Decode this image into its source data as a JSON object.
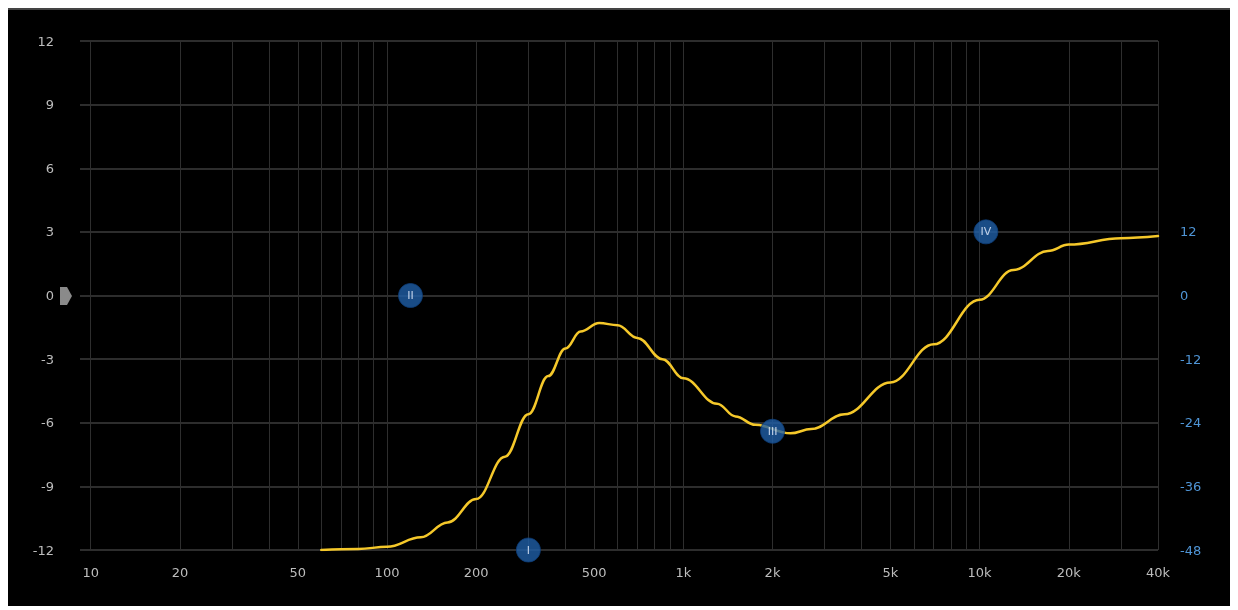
{
  "chart_data": {
    "type": "line",
    "xlim": [
      9.2,
      40000
    ],
    "xticks": [
      10,
      {
        "value": 20,
        "label": "20"
      },
      {
        "value": 30,
        "label": null
      },
      {
        "value": 40,
        "label": null
      },
      50,
      {
        "value": 60,
        "label": null
      },
      {
        "value": 70,
        "label": null
      },
      {
        "value": 80,
        "label": null
      },
      {
        "value": 90,
        "label": null
      },
      100,
      200,
      {
        "value": 300,
        "label": null
      },
      {
        "value": 400,
        "label": null
      },
      500,
      {
        "value": 600,
        "label": null
      },
      {
        "value": 700,
        "label": null
      },
      {
        "value": 800,
        "label": null
      },
      {
        "value": 900,
        "label": null
      },
      {
        "value": 1000,
        "label": "1k"
      },
      {
        "value": 2000,
        "label": "2k"
      },
      {
        "value": 3000,
        "label": null
      },
      {
        "value": 4000,
        "label": null
      },
      {
        "value": 5000,
        "label": "5k"
      },
      {
        "value": 6000,
        "label": null
      },
      {
        "value": 7000,
        "label": null
      },
      {
        "value": 8000,
        "label": null
      },
      {
        "value": 9000,
        "label": null
      },
      {
        "value": 10000,
        "label": "10k"
      },
      {
        "value": 20000,
        "label": "20k"
      },
      {
        "value": 30000,
        "label": null
      },
      {
        "value": 40000,
        "label": "40k"
      }
    ],
    "ylim": [
      -12,
      12
    ],
    "yticks": [
      -12,
      -9,
      -6,
      -3,
      0,
      3,
      6,
      9,
      12
    ],
    "y2lim": [
      -48,
      48
    ],
    "y2ticks": [
      -48,
      -36,
      -24,
      -12,
      0,
      12
    ],
    "log": "x",
    "grid": true,
    "series": [
      {
        "color": "#f5c82a",
        "marker": "none",
        "x": [
          60,
          80,
          100,
          130,
          160,
          200,
          250,
          300,
          350,
          400,
          450,
          520,
          600,
          700,
          850,
          1000,
          1300,
          1500,
          1750,
          2300,
          2700,
          3500,
          5000,
          7000,
          10000,
          13000,
          17000,
          20000,
          30000,
          40000
        ],
        "values": [
          -12,
          -11.95,
          -11.85,
          -11.4,
          -10.7,
          -9.6,
          -7.6,
          -5.6,
          -3.8,
          -2.5,
          -1.7,
          -1.3,
          -1.4,
          -2,
          -3,
          -3.9,
          -5.1,
          -5.7,
          -6.1,
          -6.5,
          -6.3,
          -5.6,
          -4.1,
          -2.3,
          -0.2,
          1.2,
          2.1,
          2.4,
          2.7,
          2.8
        ]
      },
      {
        "type": "scatter",
        "color": "#1f5fa8",
        "marker": "circle",
        "x": [
          300,
          120,
          2000,
          10500
        ],
        "values": [
          -12,
          0,
          -6.4,
          3
        ],
        "value_labels": [
          "I",
          "II",
          "III",
          "IV"
        ]
      }
    ]
  }
}
